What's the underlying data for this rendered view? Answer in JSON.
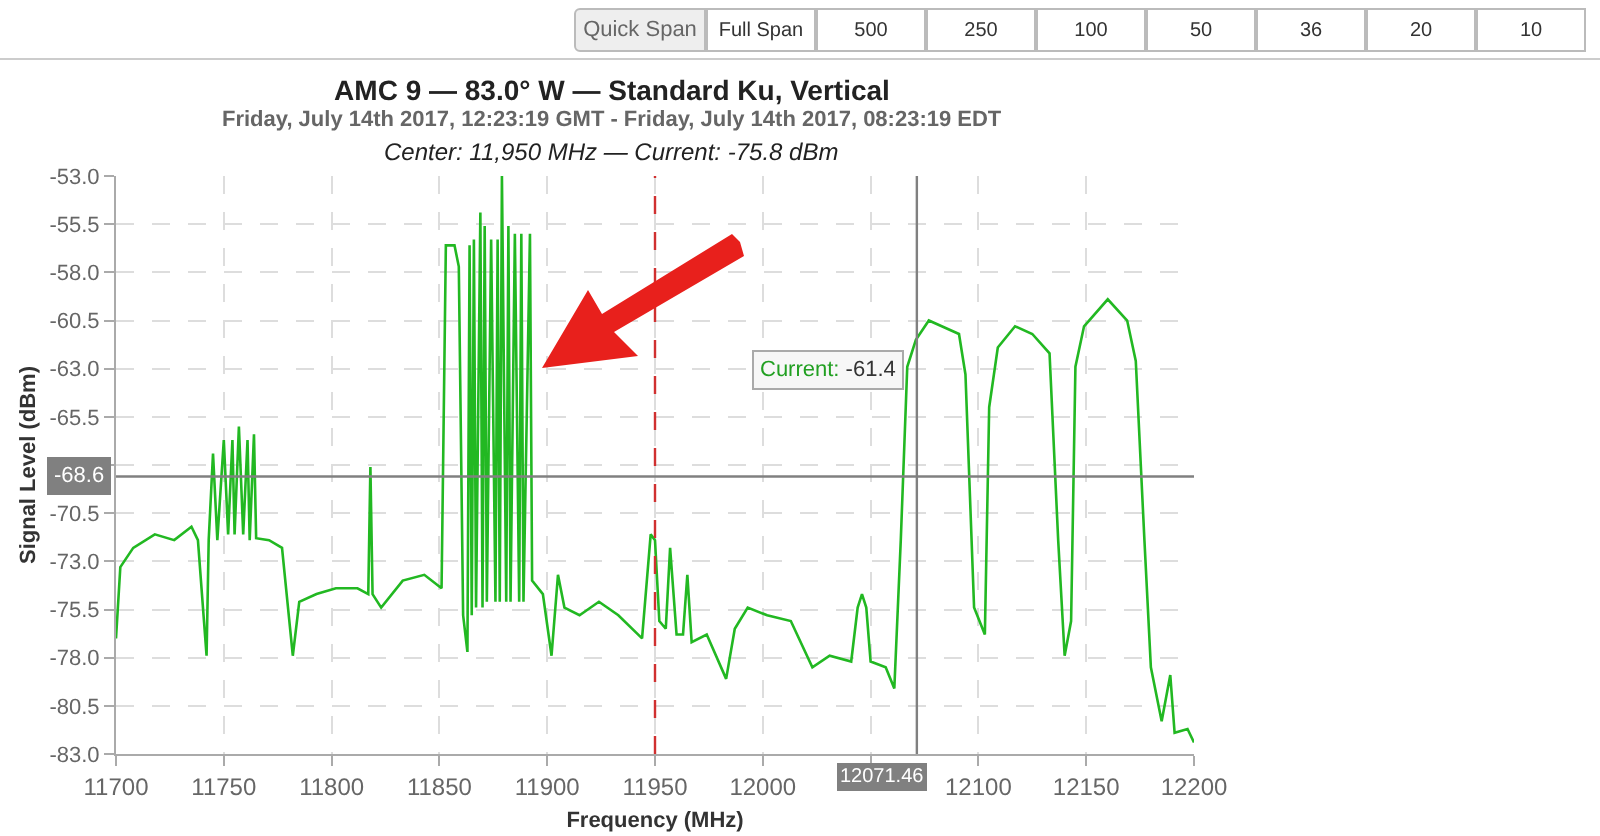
{
  "chart_data": {
    "type": "line",
    "title": "AMC 9 — 83.0° W — Standard Ku, Vertical",
    "subtitle": "Friday, July 14th 2017, 12:23:19 GMT - Friday, July 14th 2017, 08:23:19 EDT",
    "xlabel": "Frequency (MHz)",
    "ylabel": "Signal Level (dBm)",
    "annotations": [
      "Center: 11,950 MHz — Current: -75.8 dBm",
      {
        "text": "Current: -61.4",
        "x": 12071.46,
        "y": -61.4
      },
      "Quick Span",
      "Full Span",
      "500",
      "250",
      "100",
      "50",
      "36",
      "20",
      "10"
    ],
    "xlim": [
      11700,
      12200
    ],
    "xticks": [
      11700,
      11750,
      11800,
      11850,
      11900,
      11950,
      12000,
      {
        "value": 12050,
        "label": null
      },
      12100,
      12150,
      12200
    ],
    "ylim": [
      -83,
      -53
    ],
    "yticks": [
      {
        "value": -53,
        "label": "-53.0"
      },
      {
        "value": -55.5,
        "label": "-55.5"
      },
      {
        "value": -58,
        "label": "-58.0"
      },
      {
        "value": -60.5,
        "label": "-60.5"
      },
      {
        "value": -63,
        "label": "-63.0"
      },
      {
        "value": -65.5,
        "label": "-65.5"
      },
      {
        "value": -68,
        "label": null
      },
      {
        "value": -70.5,
        "label": "-70.5"
      },
      {
        "value": -73,
        "label": "-73.0"
      },
      {
        "value": -75.5,
        "label": "-75.5"
      },
      {
        "value": -78,
        "label": "-78.0"
      },
      {
        "value": -80.5,
        "label": "-80.5"
      },
      {
        "value": -83,
        "label": "-83.0"
      }
    ],
    "grid": true,
    "marker": "none",
    "line_style": "solid",
    "ref_lines": [
      {
        "axis": "x",
        "value": 11950,
        "color": "#d03030",
        "line_style": "dashed"
      },
      {
        "axis": "y",
        "value": -68.6,
        "label": "-68.6",
        "color": "#808080",
        "line_style": "solid"
      },
      {
        "axis": "x",
        "value": 12071.46,
        "label": "12071.46",
        "color": "#808080",
        "line_style": "solid"
      }
    ],
    "series": [
      {
        "color": "#22b822",
        "x": [
          11700,
          11702,
          11708,
          11718,
          11727,
          11735,
          11738,
          11742,
          11743,
          11745,
          11747,
          11750,
          11752,
          11754,
          11755,
          11757,
          11759,
          11761,
          11762,
          11764,
          11765,
          11771,
          11777,
          11782,
          11785,
          11793,
          11802,
          11812,
          11817,
          11818,
          11819,
          11823,
          11833,
          11843,
          11851,
          11853,
          11857,
          11859,
          11861,
          11863,
          11864,
          11865,
          11866,
          11867,
          11869,
          11870,
          11871,
          11872,
          11874,
          11876,
          11877,
          11878,
          11879,
          11881,
          11882,
          11883,
          11885,
          11887,
          11888,
          11889,
          11892,
          11893,
          11898,
          11902,
          11905,
          11908,
          11915,
          11924,
          11933,
          11944,
          11948,
          11950,
          11952,
          11955,
          11957,
          11960,
          11963,
          11965,
          11967,
          11974,
          11983,
          11987,
          11993,
          12002,
          12013,
          12023,
          12031,
          12041,
          12044,
          12046,
          12048,
          12050,
          12057,
          12061,
          12064,
          12067,
          12071,
          12077,
          12083,
          12091,
          12094,
          12098,
          12103,
          12105,
          12109,
          12117,
          12125,
          12133,
          12137,
          12140,
          12143,
          12145,
          12149,
          12160,
          12169,
          12173,
          12177,
          12180,
          12185,
          12189,
          12191,
          12197,
          12200
        ],
        "values": [
          -77.0,
          -73.3,
          -72.3,
          -71.6,
          -71.9,
          -71.2,
          -71.9,
          -77.9,
          -71.9,
          -67.4,
          -71.9,
          -66.7,
          -71.6,
          -66.7,
          -71.6,
          -66.0,
          -71.6,
          -66.7,
          -71.9,
          -66.4,
          -71.8,
          -71.9,
          -72.3,
          -77.9,
          -75.1,
          -74.7,
          -74.4,
          -74.4,
          -74.7,
          -68.1,
          -74.7,
          -75.4,
          -74.0,
          -73.7,
          -74.4,
          -56.6,
          -56.6,
          -57.7,
          -75.8,
          -77.7,
          -56.6,
          -75.8,
          -56.3,
          -75.4,
          -54.9,
          -75.4,
          -55.6,
          -75.1,
          -56.3,
          -75.1,
          -56.3,
          -75.1,
          -53.0,
          -75.1,
          -55.6,
          -75.1,
          -56.0,
          -75.1,
          -56.0,
          -75.1,
          -56.0,
          -74.0,
          -74.7,
          -77.9,
          -73.7,
          -75.4,
          -75.8,
          -75.1,
          -75.8,
          -77.0,
          -71.6,
          -71.9,
          -76.1,
          -76.5,
          -72.3,
          -76.8,
          -76.8,
          -73.7,
          -77.2,
          -76.8,
          -79.1,
          -76.5,
          -75.4,
          -75.8,
          -76.1,
          -78.5,
          -77.9,
          -78.2,
          -75.4,
          -74.7,
          -75.4,
          -78.2,
          -78.5,
          -79.6,
          -71.9,
          -62.9,
          -61.5,
          -60.5,
          -60.8,
          -61.2,
          -63.3,
          -75.4,
          -76.8,
          -65.0,
          -61.9,
          -60.8,
          -61.2,
          -62.2,
          -71.9,
          -77.9,
          -76.1,
          -62.9,
          -60.8,
          -59.4,
          -60.5,
          -62.6,
          -71.9,
          -78.5,
          -81.3,
          -78.9,
          -81.9,
          -81.7,
          -82.4
        ]
      }
    ]
  }
}
